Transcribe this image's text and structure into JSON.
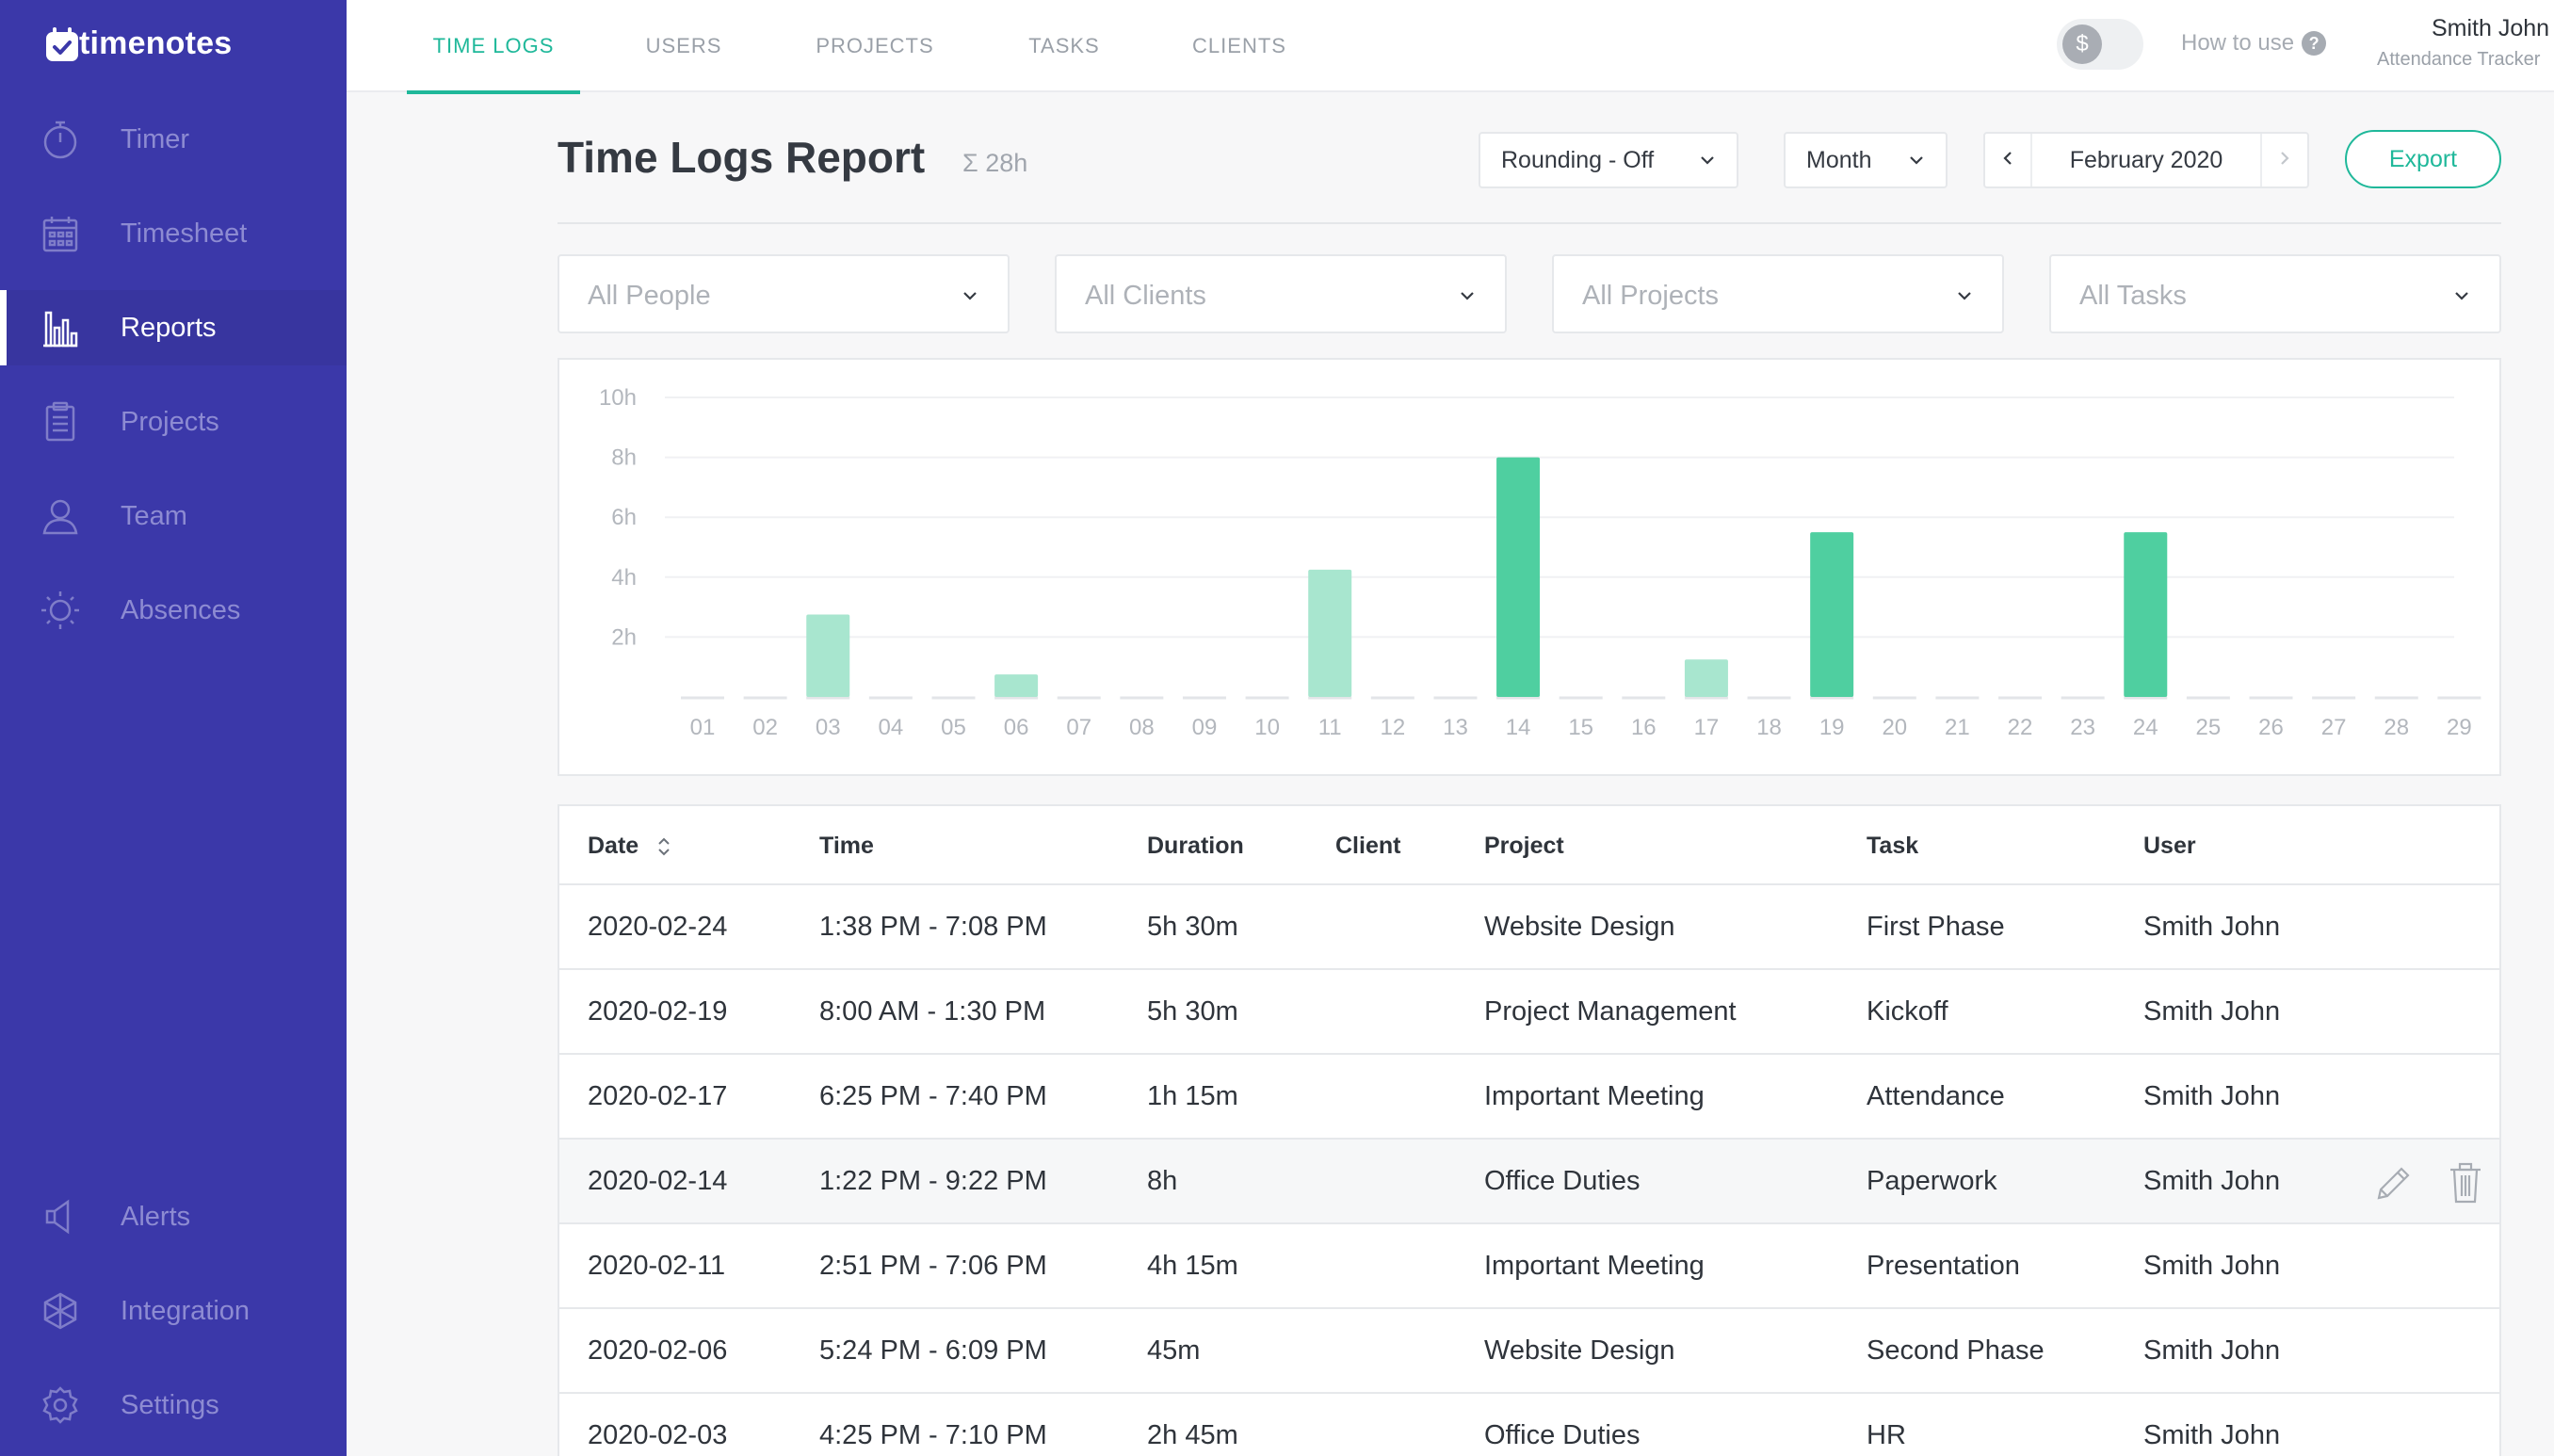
{
  "app": {
    "name": "timenotes"
  },
  "sidebar": {
    "items": [
      {
        "label": "Timer",
        "icon": "stopwatch-icon"
      },
      {
        "label": "Timesheet",
        "icon": "calendar-icon"
      },
      {
        "label": "Reports",
        "icon": "bar-chart-icon",
        "active": true
      },
      {
        "label": "Projects",
        "icon": "clipboard-icon"
      },
      {
        "label": "Team",
        "icon": "user-icon"
      },
      {
        "label": "Absences",
        "icon": "sun-icon"
      }
    ],
    "bottom_items": [
      {
        "label": "Alerts",
        "icon": "megaphone-icon"
      },
      {
        "label": "Integration",
        "icon": "integration-icon"
      },
      {
        "label": "Settings",
        "icon": "gear-icon"
      }
    ]
  },
  "topbar": {
    "tabs": [
      "TIME LOGS",
      "USERS",
      "PROJECTS",
      "TASKS",
      "CLIENTS"
    ],
    "active_tab": "TIME LOGS",
    "billable_toggle": "$",
    "how_to_use": "How to use",
    "help_icon": "?",
    "user": {
      "name": "Smith John",
      "role": "Attendance Tracker"
    }
  },
  "header": {
    "title": "Time Logs Report",
    "total": "Σ 28h",
    "rounding": "Rounding - Off",
    "period": "Month",
    "date_label": "February 2020",
    "export_label": "Export"
  },
  "filters": {
    "people": "All People",
    "clients": "All Clients",
    "projects": "All Projects",
    "tasks": "All Tasks"
  },
  "colors": {
    "sidebar": "#3b38a9",
    "accent": "#1fb89a",
    "bar_strong": "#4fcfa0",
    "bar_light": "#a8e6cf"
  },
  "chart_data": {
    "type": "bar",
    "categories": [
      "01",
      "02",
      "03",
      "04",
      "05",
      "06",
      "07",
      "08",
      "09",
      "10",
      "11",
      "12",
      "13",
      "14",
      "15",
      "16",
      "17",
      "18",
      "19",
      "20",
      "21",
      "22",
      "23",
      "24",
      "25",
      "26",
      "27",
      "28",
      "29"
    ],
    "values": [
      0,
      0,
      2.75,
      0,
      0,
      0.75,
      0,
      0,
      0,
      0,
      4.25,
      0,
      0,
      8,
      0,
      0,
      1.25,
      0,
      5.5,
      0,
      0,
      0,
      0,
      5.5,
      0,
      0,
      0,
      0,
      0
    ],
    "highlight": [
      false,
      false,
      false,
      false,
      false,
      false,
      false,
      false,
      false,
      false,
      false,
      false,
      false,
      true,
      false,
      false,
      false,
      false,
      true,
      false,
      false,
      false,
      false,
      true,
      false,
      false,
      false,
      false,
      false
    ],
    "y_ticks": [
      "2h",
      "4h",
      "6h",
      "8h",
      "10h"
    ],
    "ylim": [
      0,
      10
    ],
    "grid": true
  },
  "table": {
    "columns": [
      "Date",
      "Time",
      "Duration",
      "Client",
      "Project",
      "Task",
      "User"
    ],
    "rows": [
      {
        "date": "2020-02-24",
        "time": "1:38 PM - 7:08 PM",
        "duration": "5h 30m",
        "client": "",
        "project": "Website Design",
        "task": "First Phase",
        "user": "Smith John"
      },
      {
        "date": "2020-02-19",
        "time": "8:00 AM - 1:30 PM",
        "duration": "5h 30m",
        "client": "",
        "project": "Project Management",
        "task": "Kickoff",
        "user": "Smith John"
      },
      {
        "date": "2020-02-17",
        "time": "6:25 PM - 7:40 PM",
        "duration": "1h 15m",
        "client": "",
        "project": "Important Meeting",
        "task": "Attendance",
        "user": "Smith John"
      },
      {
        "date": "2020-02-14",
        "time": "1:22 PM - 9:22 PM",
        "duration": "8h",
        "client": "",
        "project": "Office Duties",
        "task": "Paperwork",
        "user": "Smith John",
        "hovered": true
      },
      {
        "date": "2020-02-11",
        "time": "2:51 PM - 7:06 PM",
        "duration": "4h 15m",
        "client": "",
        "project": "Important Meeting",
        "task": "Presentation",
        "user": "Smith John"
      },
      {
        "date": "2020-02-06",
        "time": "5:24 PM - 6:09 PM",
        "duration": "45m",
        "client": "",
        "project": "Website Design",
        "task": "Second Phase",
        "user": "Smith John"
      },
      {
        "date": "2020-02-03",
        "time": "4:25 PM - 7:10 PM",
        "duration": "2h 45m",
        "client": "",
        "project": "Office Duties",
        "task": "HR",
        "user": "Smith John"
      }
    ]
  }
}
